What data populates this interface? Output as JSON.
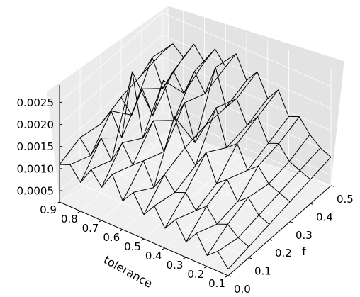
{
  "chart_data": {
    "type": "wireframe-3d",
    "title": "",
    "xlabel": "tolerance",
    "ylabel": "f",
    "zlabel": "",
    "x_ticks": [
      "0.9",
      "0.8",
      "0.7",
      "0.6",
      "0.5",
      "0.4",
      "0.3",
      "0.2",
      "0.1"
    ],
    "y_ticks": [
      "0.0",
      "0.1",
      "0.2",
      "0.3",
      "0.4",
      "0.5"
    ],
    "z_ticks": [
      "0.0005",
      "0.0010",
      "0.0015",
      "0.0020",
      "0.0025"
    ],
    "xlim": [
      0.1,
      0.9
    ],
    "ylim": [
      0.0,
      0.5
    ],
    "zlim": [
      0.00025,
      0.0029
    ],
    "grid": true,
    "pane_color": "#ebebeb",
    "grid_color": "#ffffff",
    "line_color": "#000000",
    "series": [
      {
        "f": 0.0,
        "tolerance": [
          0.9,
          0.85,
          0.8,
          0.75,
          0.7,
          0.65,
          0.6,
          0.55,
          0.5,
          0.45,
          0.4,
          0.35,
          0.3,
          0.25,
          0.2,
          0.15,
          0.1
        ],
        "values": [
          0.0011,
          0.0012,
          0.0009,
          0.0013,
          0.001,
          0.0014,
          0.0009,
          0.0012,
          0.0008,
          0.0011,
          0.0007,
          0.001,
          0.0006,
          0.0009,
          0.0005,
          0.0007,
          0.0004
        ]
      },
      {
        "f": 0.1,
        "tolerance": [
          0.9,
          0.85,
          0.8,
          0.75,
          0.7,
          0.65,
          0.6,
          0.55,
          0.5,
          0.45,
          0.4,
          0.35,
          0.3,
          0.25,
          0.2,
          0.15,
          0.1
        ],
        "values": [
          0.0013,
          0.001,
          0.0015,
          0.0011,
          0.0016,
          0.0012,
          0.0014,
          0.0009,
          0.0013,
          0.001,
          0.0011,
          0.0008,
          0.001,
          0.0007,
          0.0008,
          0.0006,
          0.0005
        ]
      },
      {
        "f": 0.2,
        "tolerance": [
          0.9,
          0.85,
          0.8,
          0.75,
          0.7,
          0.65,
          0.6,
          0.55,
          0.5,
          0.45,
          0.4,
          0.35,
          0.3,
          0.25,
          0.2,
          0.15,
          0.1
        ],
        "values": [
          0.0012,
          0.0016,
          0.0011,
          0.0027,
          0.0013,
          0.0018,
          0.0012,
          0.0021,
          0.0015,
          0.0012,
          0.0016,
          0.001,
          0.0012,
          0.0008,
          0.001,
          0.0007,
          0.0006
        ]
      },
      {
        "f": 0.3,
        "tolerance": [
          0.9,
          0.85,
          0.8,
          0.75,
          0.7,
          0.65,
          0.6,
          0.55,
          0.5,
          0.45,
          0.4,
          0.35,
          0.3,
          0.25,
          0.2,
          0.15,
          0.1
        ],
        "values": [
          0.0014,
          0.0011,
          0.0018,
          0.0013,
          0.0022,
          0.0014,
          0.0019,
          0.0011,
          0.0016,
          0.0021,
          0.0013,
          0.0015,
          0.001,
          0.0012,
          0.0009,
          0.0008,
          0.0007
        ]
      },
      {
        "f": 0.4,
        "tolerance": [
          0.9,
          0.85,
          0.8,
          0.75,
          0.7,
          0.65,
          0.6,
          0.55,
          0.5,
          0.45,
          0.4,
          0.35,
          0.3,
          0.25,
          0.2,
          0.15,
          0.1
        ],
        "values": [
          0.0015,
          0.002,
          0.0014,
          0.0019,
          0.0015,
          0.0021,
          0.0017,
          0.0024,
          0.0016,
          0.0019,
          0.0014,
          0.0017,
          0.0012,
          0.0013,
          0.001,
          0.0009,
          0.0008
        ]
      },
      {
        "f": 0.5,
        "tolerance": [
          0.9,
          0.85,
          0.8,
          0.75,
          0.7,
          0.65,
          0.6,
          0.55,
          0.5,
          0.45,
          0.4,
          0.35,
          0.3,
          0.25,
          0.2,
          0.15,
          0.1
        ],
        "values": [
          0.0016,
          0.0019,
          0.0017,
          0.0021,
          0.0018,
          0.0022,
          0.0019,
          0.0023,
          0.0018,
          0.0021,
          0.0016,
          0.0019,
          0.0014,
          0.0015,
          0.0012,
          0.001,
          0.0009
        ]
      }
    ]
  }
}
